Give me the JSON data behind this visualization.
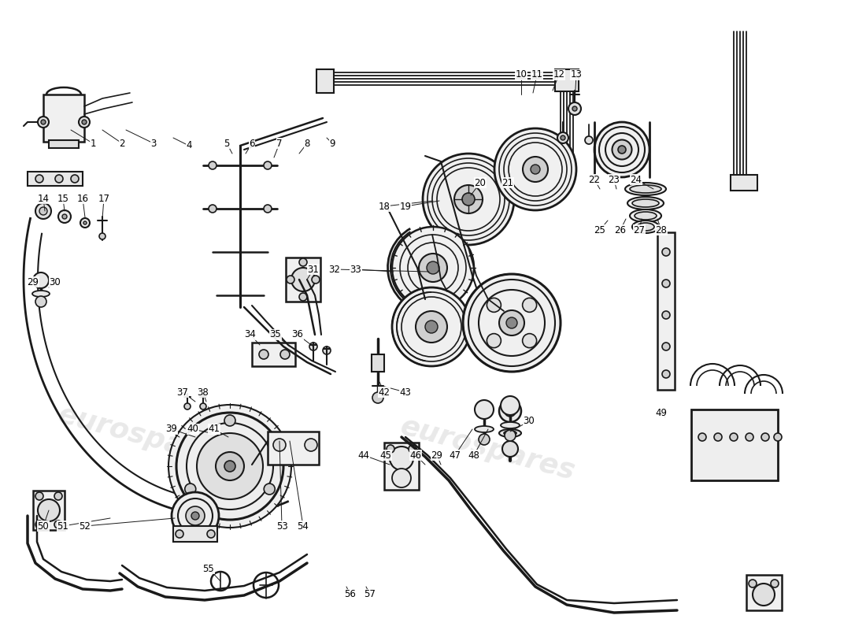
{
  "bg_color": "#ffffff",
  "line_color": "#1a1a1a",
  "figsize": [
    11.0,
    8.0
  ],
  "dpi": 100,
  "wm_color": "#c8c8c8",
  "wm_alpha": 0.4
}
